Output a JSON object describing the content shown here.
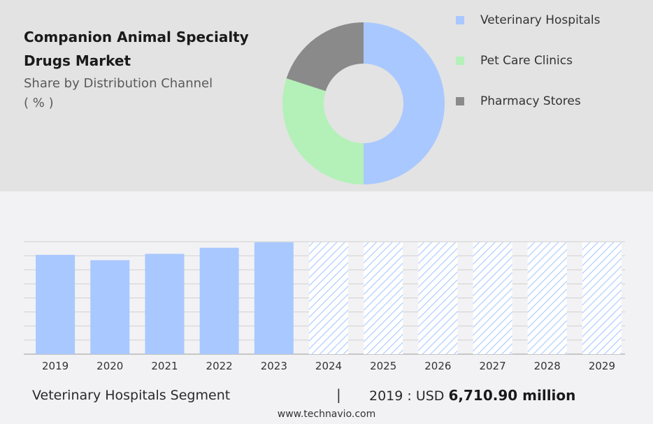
{
  "header": {
    "title": "Companion Animal Specialty Drugs Market",
    "subtitle": "Share by Distribution Channel",
    "unit": "( % )"
  },
  "colors": {
    "veterinary_hospitals": "#a9c8ff",
    "pet_care_clinics": "#b3f1b8",
    "pharmacy_stores": "#8a8a8a",
    "bar": "#a9c8ff",
    "forecast_hatch": "#a9c8ff"
  },
  "chart_data": [
    {
      "type": "pie",
      "style": "donut",
      "categories": [
        "Veterinary Hospitals",
        "Pet Care Clinics",
        "Pharmacy Stores"
      ],
      "values": [
        50,
        30,
        20
      ],
      "legend_position": "right"
    },
    {
      "type": "bar",
      "categories": [
        "2019",
        "2020",
        "2021",
        "2022",
        "2023",
        "2024",
        "2025",
        "2026",
        "2027",
        "2028",
        "2029"
      ],
      "values": [
        6710.9,
        6350,
        6780,
        7190,
        7560,
        7560,
        7560,
        7560,
        7560,
        7560,
        7560
      ],
      "forecast_from": "2024",
      "ylim": [
        0,
        7600
      ],
      "grid": true,
      "y_tick_labels_shown": false
    }
  ],
  "footer": {
    "segment": "Veterinary Hospitals Segment",
    "separator": "|",
    "value_prefix": "2019 : USD",
    "value": "6,710.90 million",
    "website": "www.technavio.com"
  }
}
